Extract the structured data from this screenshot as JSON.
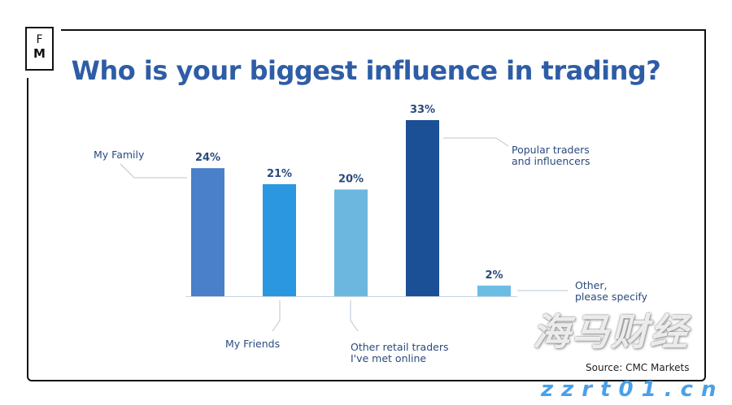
{
  "logo": {
    "line1": "F",
    "line2": "M"
  },
  "chart_data": {
    "type": "bar",
    "title": "Who is your biggest influence in trading?",
    "categories": [
      "My Family",
      "My Friends",
      "Other retail traders I've met online",
      "Popular traders and influencers",
      "Other, please specify"
    ],
    "category_label_lines": [
      [
        "My Family"
      ],
      [
        "My Friends"
      ],
      [
        "Other retail traders",
        "I've met online"
      ],
      [
        "Popular traders",
        "and influencers"
      ],
      [
        "Other,",
        "please specify"
      ]
    ],
    "values": [
      24,
      21,
      20,
      33,
      2
    ],
    "data_labels": [
      "24%",
      "21%",
      "20%",
      "33%",
      "2%"
    ],
    "unit": "%",
    "colors": [
      "#4a7fc9",
      "#2a97e0",
      "#6bb7e0",
      "#1b4f96",
      "#6bbde4"
    ],
    "ylim": [
      0,
      33
    ],
    "grid": false,
    "legend": "none"
  },
  "source": "Source: CMC Markets",
  "watermark": {
    "line1": "海马财经",
    "line2": "zzrt01.cn"
  }
}
